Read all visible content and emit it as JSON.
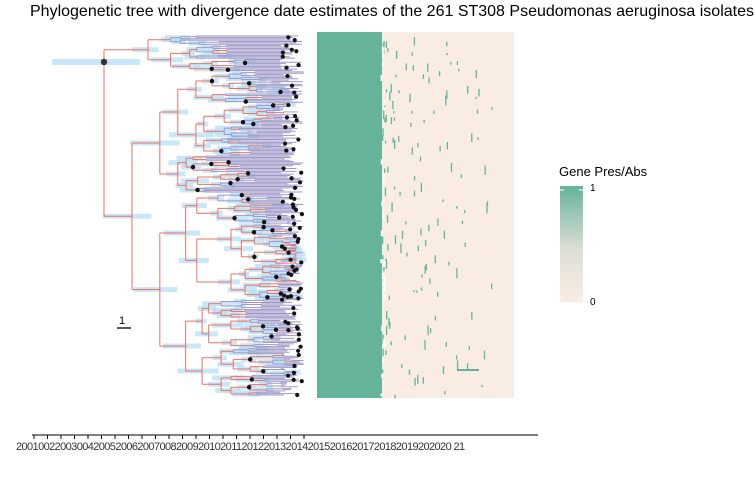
{
  "chart_data": {
    "type": "phylogenetic-tree-with-heatmap",
    "title": "Phylogenetic tree with divergence date estimates of the 261 ST308 Pseudomonas aeruginosa isolates",
    "tree": {
      "n_tips": 261,
      "scale_bar_label": "1",
      "x_axis_tick_labels_text": "2001002200300420052006200700820092010201120122013201420152016201720182019202020 21",
      "x_axis_range_years": [
        2001,
        2021
      ]
    },
    "heatmap": {
      "legend_title": "Gene Pres/Abs",
      "legend_min_label": "0",
      "legend_max_label": "1",
      "values": [
        0,
        1
      ]
    }
  },
  "colors": {
    "branch": "#f07060",
    "branch_secondary": "#9d98c8",
    "hpd_interval": "#b5dff5",
    "tip_point": "#111111",
    "present": "#66b39b",
    "absent": "#f9ede3"
  }
}
